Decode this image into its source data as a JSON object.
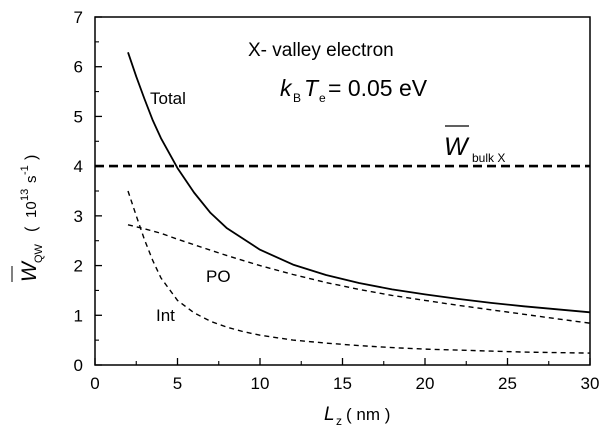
{
  "chart_data": {
    "type": "line",
    "xlabel_main": "L",
    "xlabel_sub": "z",
    "xlabel_unit": "( nm )",
    "ylabel_main": "W",
    "ylabel_sub": "QW",
    "ylabel_unit_open": "(",
    "ylabel_unit_base": "10",
    "ylabel_unit_exp": "13",
    "ylabel_unit_s": "s",
    "ylabel_unit_sexp": "-1",
    "ylabel_unit_close": ")",
    "xlim": [
      0,
      30
    ],
    "ylim": [
      0,
      7
    ],
    "x_ticks": [
      "0",
      "5",
      "10",
      "15",
      "20",
      "25",
      "30"
    ],
    "y_ticks": [
      "0",
      "1",
      "2",
      "3",
      "4",
      "5",
      "6",
      "7"
    ],
    "grid": false,
    "annotations": {
      "title": "X- valley electron",
      "temp_k": "k",
      "temp_b": "B",
      "temp_t": "T",
      "temp_e": "e",
      "temp_value": "= 0.05 eV",
      "bulk_w": "W",
      "bulk_sub": "bulk X",
      "label_total": "Total",
      "label_po": "PO",
      "label_int": "Int"
    },
    "series": [
      {
        "name": "Total",
        "style": "solid",
        "x": [
          2,
          2.5,
          3,
          3.5,
          4,
          5,
          6,
          7,
          8,
          10,
          12,
          14,
          16,
          18,
          20,
          22,
          24,
          26,
          28,
          30
        ],
        "y": [
          6.29,
          5.8,
          5.35,
          4.92,
          4.56,
          3.96,
          3.47,
          3.06,
          2.75,
          2.32,
          2.02,
          1.81,
          1.65,
          1.52,
          1.42,
          1.33,
          1.25,
          1.18,
          1.12,
          1.06
        ]
      },
      {
        "name": "PO",
        "style": "dashed",
        "x": [
          2,
          3,
          4,
          5,
          6,
          7,
          8,
          10,
          12,
          14,
          16,
          18,
          20,
          22,
          24,
          26,
          28,
          30
        ],
        "y": [
          2.82,
          2.74,
          2.65,
          2.53,
          2.42,
          2.31,
          2.2,
          2.0,
          1.82,
          1.66,
          1.52,
          1.4,
          1.3,
          1.2,
          1.11,
          1.02,
          0.93,
          0.84
        ]
      },
      {
        "name": "Int",
        "style": "dashed",
        "x": [
          2,
          2.5,
          3,
          3.5,
          4,
          5,
          6,
          7,
          8,
          9,
          10,
          12,
          14,
          16,
          18,
          20,
          22,
          24,
          26,
          28,
          30
        ],
        "y": [
          3.5,
          3.0,
          2.52,
          2.1,
          1.75,
          1.3,
          1.05,
          0.88,
          0.76,
          0.67,
          0.6,
          0.5,
          0.44,
          0.39,
          0.35,
          0.32,
          0.3,
          0.28,
          0.26,
          0.25,
          0.24
        ]
      },
      {
        "name": "bulk X",
        "style": "thick-dashed",
        "x": [
          0,
          30
        ],
        "y": [
          4.0,
          4.0
        ]
      }
    ]
  }
}
